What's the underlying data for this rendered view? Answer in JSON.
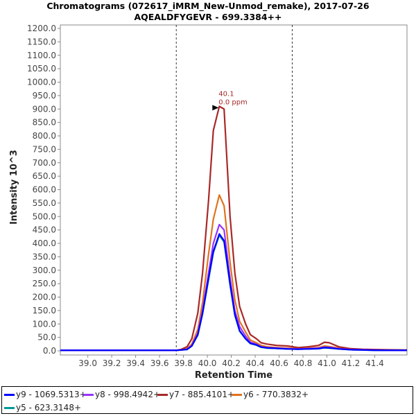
{
  "title": "Chromatograms (072617_iMRM_New-Unmod_remake), 2017-07-26",
  "subtitle": "AQEALDFYGEVR - 699.3384++",
  "chart_data": {
    "type": "line",
    "xlabel": "Retention Time",
    "ylabel": "Intensity 10^3",
    "xlim": [
      38.77,
      41.67
    ],
    "ylim": [
      0,
      1200
    ],
    "xticks": [
      "39.0",
      "39.2",
      "39.4",
      "39.6",
      "39.8",
      "40.0",
      "40.2",
      "40.4",
      "40.6",
      "40.8",
      "41.0",
      "41.2",
      "41.4"
    ],
    "yticks": [
      "0.0",
      "50.0",
      "100.0",
      "150.0",
      "200.0",
      "250.0",
      "300.0",
      "350.0",
      "400.0",
      "450.0",
      "500.0",
      "550.0",
      "600.0",
      "650.0",
      "700.0",
      "750.0",
      "800.0",
      "850.0",
      "900.0",
      "950.0",
      "1000.0",
      "1050.0",
      "1100.0",
      "1150.0",
      "1200.0"
    ],
    "integration_boundaries": [
      39.74,
      40.71
    ],
    "peak_annotation": {
      "rt_label": "40.1",
      "ppm_label": "0.0 ppm",
      "x": 40.1,
      "y": 910
    },
    "x": [
      38.77,
      39.5,
      39.74,
      39.78,
      39.83,
      39.87,
      39.92,
      39.96,
      40.01,
      40.05,
      40.1,
      40.14,
      40.19,
      40.23,
      40.27,
      40.32,
      40.36,
      40.41,
      40.45,
      40.5,
      40.58,
      40.67,
      40.76,
      40.84,
      40.93,
      40.98,
      41.02,
      41.1,
      41.2,
      41.3,
      41.4,
      41.5,
      41.67
    ],
    "series": [
      {
        "name": "y5 - 623.3148+",
        "color": "#009999",
        "values": [
          2,
          2,
          2,
          3,
          5,
          18,
          58,
          138,
          265,
          365,
          430,
          405,
          245,
          132,
          73,
          44,
          27,
          21,
          13,
          10,
          9,
          7,
          6,
          7,
          8,
          11,
          10,
          7,
          4,
          3,
          2,
          2,
          2
        ]
      },
      {
        "name": "y6 - 770.3832+",
        "color": "#e0731e",
        "values": [
          2,
          2,
          2,
          3,
          8,
          25,
          80,
          180,
          360,
          490,
          580,
          540,
          330,
          190,
          110,
          70,
          40,
          30,
          20,
          15,
          12,
          10,
          8,
          10,
          12,
          18,
          16,
          10,
          6,
          4,
          3,
          3,
          2
        ]
      },
      {
        "name": "y7 - 885.4101+",
        "color": "#a82828",
        "values": [
          2,
          2,
          2,
          5,
          15,
          45,
          140,
          290,
          560,
          820,
          910,
          900,
          500,
          290,
          165,
          100,
          60,
          45,
          30,
          25,
          20,
          18,
          12,
          15,
          20,
          32,
          30,
          15,
          8,
          6,
          5,
          4,
          3
        ]
      },
      {
        "name": "y8 - 998.4942+",
        "color": "#9933ff",
        "values": [
          2,
          2,
          2,
          3,
          6,
          20,
          65,
          150,
          290,
          400,
          470,
          450,
          270,
          150,
          90,
          55,
          32,
          25,
          15,
          12,
          10,
          8,
          7,
          8,
          10,
          14,
          13,
          8,
          5,
          4,
          3,
          2,
          2
        ]
      },
      {
        "name": "y9 - 1069.5313+",
        "color": "#0000ff",
        "values": [
          2,
          2,
          2,
          3,
          5,
          18,
          60,
          140,
          270,
          370,
          435,
          410,
          250,
          135,
          75,
          45,
          28,
          22,
          14,
          11,
          9,
          7,
          6,
          7,
          8,
          12,
          11,
          7,
          4,
          3,
          2,
          2,
          2
        ]
      }
    ],
    "legend": {
      "placement": "bottom",
      "order": [
        "y9 - 1069.5313+",
        "y8 - 998.4942+",
        "y7 - 885.4101+",
        "y6 - 770.3832+",
        "y5 - 623.3148+"
      ]
    }
  }
}
